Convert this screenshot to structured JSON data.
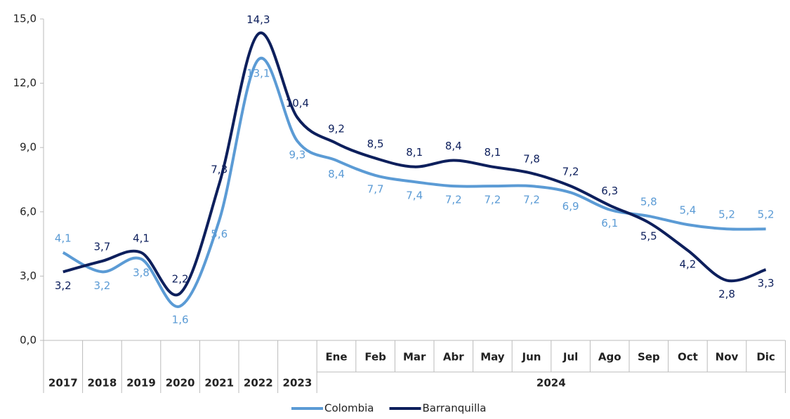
{
  "chart_data": {
    "type": "line",
    "categories": [
      "2017",
      "2018",
      "2019",
      "2020",
      "2021",
      "2022",
      "2023",
      "Ene",
      "Feb",
      "Mar",
      "Abr",
      "May",
      "Jun",
      "Jul",
      "Ago",
      "Sep",
      "Oct",
      "Nov",
      "Dic"
    ],
    "category_group": "2024",
    "ylim": [
      0,
      15
    ],
    "yticks": [
      {
        "value": 0,
        "label": "0,0"
      },
      {
        "value": 3,
        "label": "3,0"
      },
      {
        "value": 6,
        "label": "6,0"
      },
      {
        "value": 9,
        "label": "9,0"
      },
      {
        "value": 12,
        "label": "12,0"
      },
      {
        "value": 15,
        "label": "15,0"
      }
    ],
    "series": [
      {
        "name": "Colombia",
        "color": "#5b9bd5",
        "values": [
          4.1,
          3.2,
          3.8,
          1.6,
          5.6,
          13.1,
          9.3,
          8.4,
          7.7,
          7.4,
          7.2,
          7.2,
          7.2,
          6.9,
          6.1,
          5.8,
          5.4,
          5.2,
          5.2
        ],
        "value_labels": [
          "4,1",
          "3,2",
          "3,8",
          "1,6",
          "5,6",
          "13,1",
          "9,3",
          "8,4",
          "7,7",
          "7,4",
          "7,2",
          "7,2",
          "7,2",
          "6,9",
          "6,1",
          "5,8",
          "5,4",
          "5,2",
          "5,2"
        ]
      },
      {
        "name": "Barranquilla",
        "color": "#0d1f5c",
        "values": [
          3.2,
          3.7,
          4.1,
          2.2,
          7.3,
          14.3,
          10.4,
          9.2,
          8.5,
          8.1,
          8.4,
          8.1,
          7.8,
          7.2,
          6.3,
          5.5,
          4.2,
          2.8,
          3.3
        ],
        "value_labels": [
          "3,2",
          "3,7",
          "4,1",
          "2,2",
          "7,3",
          "14,3",
          "10,4",
          "9,2",
          "8,5",
          "8,1",
          "8,4",
          "8,1",
          "7,8",
          "7,2",
          "6,3",
          "5,5",
          "4,2",
          "2,8",
          "3,3"
        ]
      }
    ],
    "legend": "bottom"
  }
}
